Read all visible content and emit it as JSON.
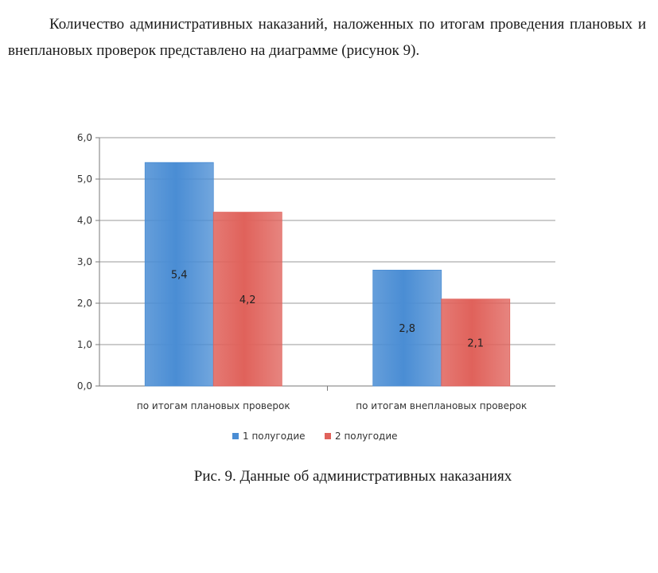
{
  "document": {
    "paragraph": "Количество административных наказаний, наложенных по итогам проведения плановых и внеплановых проверок представлено на диаграмме (рисунок 9).",
    "caption": "Рис. 9. Данные об административных наказаниях"
  },
  "chart_data": {
    "type": "bar",
    "categories": [
      "по итогам плановых проверок",
      "по итогам внеплановых проверок"
    ],
    "series": [
      {
        "name": "1 полугодие",
        "values": [
          5.4,
          2.8
        ],
        "labels": [
          "5,4",
          "2,8"
        ],
        "color": "#4a8dd4"
      },
      {
        "name": "2 полугодие",
        "values": [
          4.2,
          2.1
        ],
        "labels": [
          "4,2",
          "2,1"
        ],
        "color": "#e0625b"
      }
    ],
    "ylim": [
      0,
      6
    ],
    "yticks": [
      "0,0",
      "1,0",
      "2,0",
      "3,0",
      "4,0",
      "5,0",
      "6,0"
    ],
    "grid": true,
    "legend_position": "bottom",
    "title": "",
    "xlabel": "",
    "ylabel": ""
  }
}
